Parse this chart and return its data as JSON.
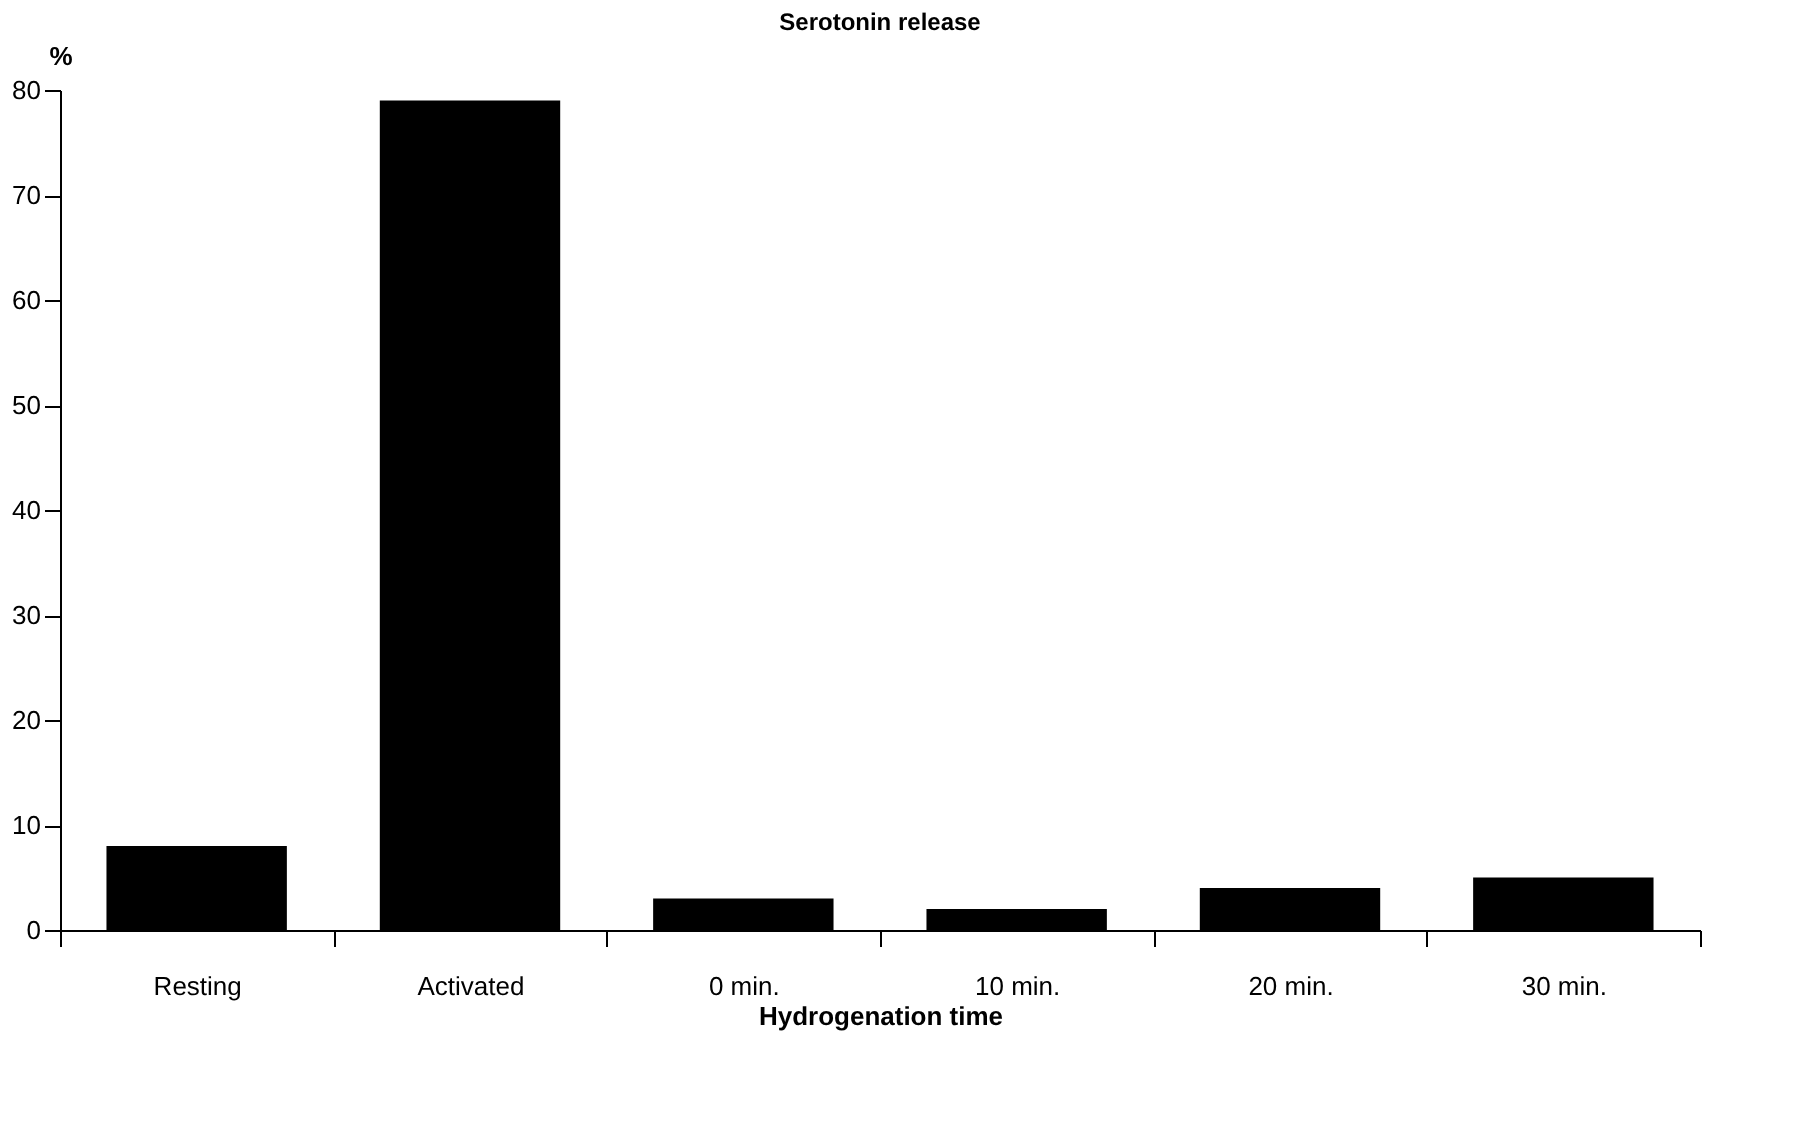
{
  "chart_data": {
    "type": "bar",
    "title": "Serotonin release",
    "xlabel": "Hydrogenation time",
    "ylabel": "%",
    "categories": [
      "Resting",
      "Activated",
      "0 min.",
      "10 min.",
      "20 min.",
      "30 min."
    ],
    "values": [
      8,
      79,
      3,
      2,
      4,
      5
    ],
    "color": "#000000",
    "ylim": [
      0,
      80
    ],
    "yticks": [
      0,
      10,
      20,
      30,
      40,
      50,
      60,
      70,
      80
    ]
  }
}
